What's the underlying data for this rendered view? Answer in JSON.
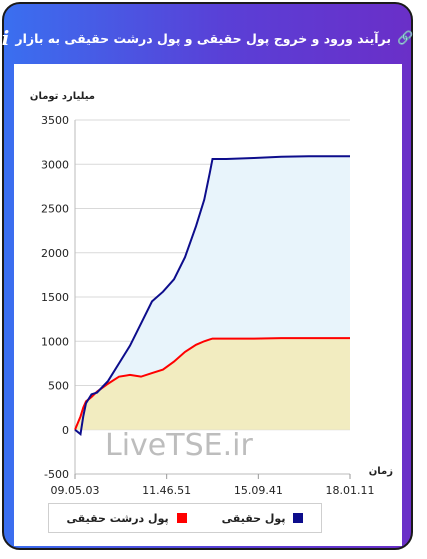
{
  "header": {
    "title": "برآیند ورود و خروج پول حقیقی و پول درشت حقیقی به بازار",
    "info_icon": "i"
  },
  "watermark": "LiveTSE.ir",
  "colors": {
    "series1": "#0d0d8c",
    "series2": "#ff0000",
    "area1": "#e8f4fb",
    "area2": "#f2ecc0"
  },
  "chart_data": {
    "type": "area",
    "ylabel": "میلیارد تومان",
    "xlabel": "زمان",
    "ylim": [
      -500,
      3500
    ],
    "yticks": [
      -500,
      0,
      500,
      1000,
      1500,
      2000,
      2500,
      3000,
      3500
    ],
    "xtick_labels": [
      "09.05.03",
      "11.46.51",
      "15.09.41",
      "18.01.11"
    ],
    "x": [
      0,
      0.02,
      0.03,
      0.04,
      0.06,
      0.08,
      0.12,
      0.16,
      0.2,
      0.24,
      0.28,
      0.32,
      0.36,
      0.4,
      0.44,
      0.47,
      0.49,
      0.5,
      0.55,
      0.65,
      0.75,
      0.85,
      1.0
    ],
    "series": [
      {
        "name": "پول حقیقی",
        "values": [
          0,
          -50,
          150,
          300,
          400,
          420,
          550,
          750,
          950,
          1200,
          1450,
          1560,
          1700,
          1950,
          2300,
          2600,
          2900,
          3060,
          3060,
          3070,
          3085,
          3090,
          3090
        ]
      },
      {
        "name": "پول درشت حقیقی",
        "values": [
          0,
          150,
          250,
          320,
          370,
          430,
          520,
          600,
          620,
          600,
          640,
          680,
          770,
          880,
          960,
          1000,
          1020,
          1030,
          1030,
          1030,
          1035,
          1035,
          1035
        ]
      }
    ],
    "legend": [
      "پول حقیقی",
      "پول درشت حقیقی"
    ],
    "legend_position": "bottom",
    "grid": true
  }
}
